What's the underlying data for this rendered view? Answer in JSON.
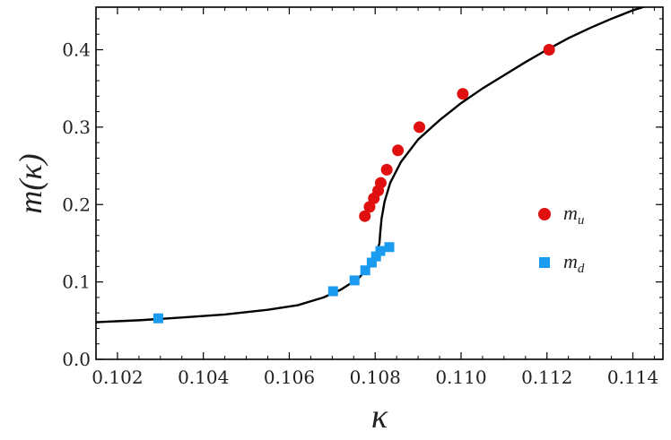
{
  "chart_data": {
    "type": "scatter",
    "xlabel": "κ",
    "ylabel": "m(κ)",
    "xlim": [
      0.1015,
      0.1147
    ],
    "ylim": [
      0.0,
      0.455
    ],
    "x_ticks": [
      0.102,
      0.104,
      0.106,
      0.108,
      0.11,
      0.112,
      0.114
    ],
    "x_tick_labels": [
      "0.102",
      "0.104",
      "0.106",
      "0.108",
      "0.110",
      "0.112",
      "0.114"
    ],
    "y_ticks": [
      0.0,
      0.1,
      0.2,
      0.3,
      0.4
    ],
    "y_tick_labels": [
      "0.0",
      "0.1",
      "0.2",
      "0.3",
      "0.4"
    ],
    "legend_position": "right",
    "series": [
      {
        "name": "m_u",
        "label_main": "m",
        "label_sub": "u",
        "marker": "circle",
        "color": "#e01010",
        "points": [
          [
            0.10776,
            0.185
          ],
          [
            0.10787,
            0.197
          ],
          [
            0.10797,
            0.208
          ],
          [
            0.10807,
            0.218
          ],
          [
            0.10813,
            0.228
          ],
          [
            0.10827,
            0.245
          ],
          [
            0.10853,
            0.27
          ],
          [
            0.10903,
            0.3
          ],
          [
            0.11004,
            0.343
          ],
          [
            0.11205,
            0.4
          ]
        ]
      },
      {
        "name": "m_d",
        "label_main": "m",
        "label_sub": "d",
        "marker": "square",
        "color": "#1a9bf0",
        "points": [
          [
            0.10295,
            0.053
          ],
          [
            0.10702,
            0.088
          ],
          [
            0.10752,
            0.102
          ],
          [
            0.10777,
            0.115
          ],
          [
            0.10792,
            0.125
          ],
          [
            0.10802,
            0.133
          ],
          [
            0.10812,
            0.14
          ],
          [
            0.10833,
            0.145
          ]
        ]
      }
    ],
    "curve": {
      "name": "fit",
      "color": "#000000",
      "points": [
        [
          0.1015,
          0.048
        ],
        [
          0.1025,
          0.0505
        ],
        [
          0.1035,
          0.054
        ],
        [
          0.1045,
          0.058
        ],
        [
          0.1055,
          0.064
        ],
        [
          0.1062,
          0.07
        ],
        [
          0.1068,
          0.08
        ],
        [
          0.1072,
          0.09
        ],
        [
          0.1076,
          0.104
        ],
        [
          0.1078,
          0.116
        ],
        [
          0.108,
          0.132
        ],
        [
          0.1081,
          0.15
        ],
        [
          0.10812,
          0.165
        ],
        [
          0.10815,
          0.182
        ],
        [
          0.10822,
          0.204
        ],
        [
          0.10835,
          0.228
        ],
        [
          0.1086,
          0.255
        ],
        [
          0.109,
          0.284
        ],
        [
          0.1095,
          0.309
        ],
        [
          0.11,
          0.331
        ],
        [
          0.1105,
          0.35
        ],
        [
          0.111,
          0.367
        ],
        [
          0.1115,
          0.384
        ],
        [
          0.112,
          0.4
        ],
        [
          0.1125,
          0.415
        ],
        [
          0.113,
          0.428
        ],
        [
          0.1135,
          0.44
        ],
        [
          0.114,
          0.451
        ],
        [
          0.1147,
          0.463
        ]
      ]
    }
  }
}
